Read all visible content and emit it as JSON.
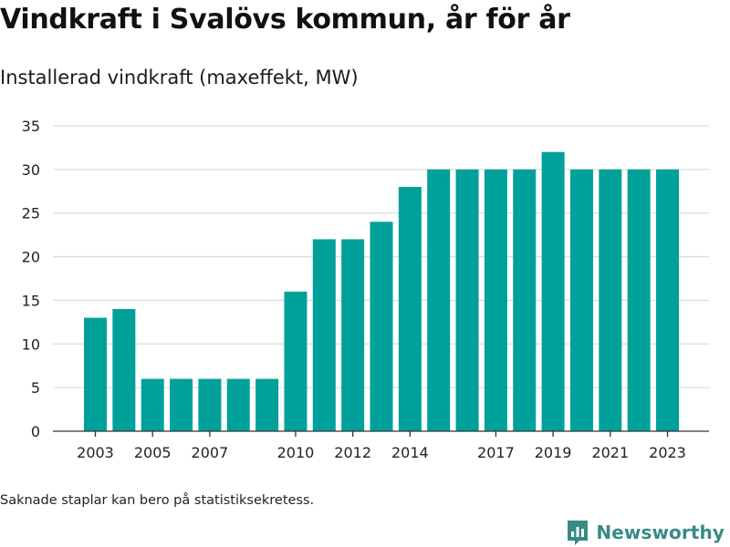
{
  "title": "Vindkraft i Svalövs kommun, år för år",
  "subtitle": "Installerad vindkraft (maxeffekt, MW)",
  "footnote": "Saknade staplar kan bero på statistiksekretess.",
  "brand": {
    "name": "Newsworthy",
    "icon": "newsworthy-logo-icon"
  },
  "colors": {
    "bar": "#00a19a",
    "grid": "#dddddd",
    "axis": "#333333",
    "brand": "#3a8a86"
  },
  "chart_data": {
    "type": "bar",
    "title": "Vindkraft i Svalövs kommun, år för år",
    "subtitle": "Installerad vindkraft (maxeffekt, MW)",
    "xlabel": "",
    "ylabel": "",
    "categories": [
      "2003",
      "2004",
      "2005",
      "2006",
      "2007",
      "2008",
      "2009",
      "2010",
      "2011",
      "2012",
      "2013",
      "2014",
      "2015",
      "2016",
      "2017",
      "2018",
      "2019",
      "2020",
      "2021",
      "2022",
      "2023"
    ],
    "values": [
      13,
      14,
      6,
      6,
      6,
      6,
      6,
      16,
      22,
      22,
      24,
      28,
      30,
      30,
      30,
      30,
      32,
      30,
      30,
      30,
      30
    ],
    "ylim": [
      0,
      35
    ],
    "yticks": [
      0,
      5,
      10,
      15,
      20,
      25,
      30,
      35
    ],
    "xtick_labels": [
      "2003",
      "2005",
      "2007",
      "2010",
      "2012",
      "2014",
      "2017",
      "2019",
      "2021",
      "2023"
    ],
    "grid": true,
    "legend": false
  }
}
